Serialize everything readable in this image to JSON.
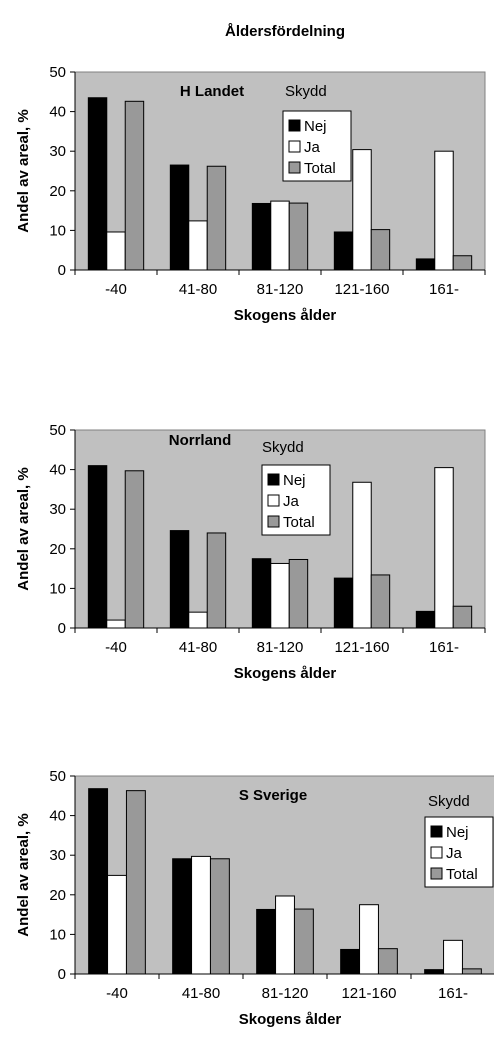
{
  "figure_title": "Åldersfördelning",
  "colors": {
    "nej": "#000000",
    "ja": "#ffffff",
    "total": "#999999",
    "plot_bg": "#c0c0c0"
  },
  "chart_data": [
    {
      "type": "bar",
      "title": "H Landet",
      "xlabel": "Skogens ålder",
      "ylabel": "Andel av areal, %",
      "ylim": [
        0,
        50
      ],
      "yticks": [
        0,
        10,
        20,
        30,
        40,
        50
      ],
      "grid": false,
      "legend_title": "Skydd",
      "legend_position": "top-right",
      "categories": [
        "-40",
        "41-80",
        "81-120",
        "121-160",
        "161-"
      ],
      "series": [
        {
          "name": "Nej",
          "values": [
            43.5,
            26.5,
            16.8,
            9.6,
            2.8
          ]
        },
        {
          "name": "Ja",
          "values": [
            9.6,
            12.4,
            17.4,
            30.4,
            30.0
          ]
        },
        {
          "name": "Total",
          "values": [
            42.6,
            26.2,
            16.9,
            10.2,
            3.6
          ]
        }
      ]
    },
    {
      "type": "bar",
      "title": "Norrland",
      "xlabel": "Skogens ålder",
      "ylabel": "Andel av areal, %",
      "ylim": [
        0,
        50
      ],
      "yticks": [
        0,
        10,
        20,
        30,
        40,
        50
      ],
      "grid": false,
      "legend_title": "Skydd",
      "legend_position": "top-right",
      "categories": [
        "-40",
        "41-80",
        "81-120",
        "121-160",
        "161-"
      ],
      "series": [
        {
          "name": "Nej",
          "values": [
            41.0,
            24.6,
            17.5,
            12.6,
            4.2
          ]
        },
        {
          "name": "Ja",
          "values": [
            2.0,
            4.0,
            16.3,
            36.8,
            40.5
          ]
        },
        {
          "name": "Total",
          "values": [
            39.7,
            24.0,
            17.3,
            13.4,
            5.5
          ]
        }
      ]
    },
    {
      "type": "bar",
      "title": "S Sverige",
      "xlabel": "Skogens ålder",
      "ylabel": "Andel av areal, %",
      "ylim": [
        0,
        50
      ],
      "yticks": [
        0,
        10,
        20,
        30,
        40,
        50
      ],
      "grid": false,
      "legend_title": "Skydd",
      "legend_position": "top-right",
      "categories": [
        "-40",
        "41-80",
        "81-120",
        "121-160",
        "161-"
      ],
      "series": [
        {
          "name": "Nej",
          "values": [
            46.8,
            29.1,
            16.3,
            6.2,
            1.1
          ]
        },
        {
          "name": "Ja",
          "values": [
            24.9,
            29.7,
            19.7,
            17.5,
            8.5
          ]
        },
        {
          "name": "Total",
          "values": [
            46.3,
            29.1,
            16.4,
            6.4,
            1.3
          ]
        }
      ]
    }
  ]
}
